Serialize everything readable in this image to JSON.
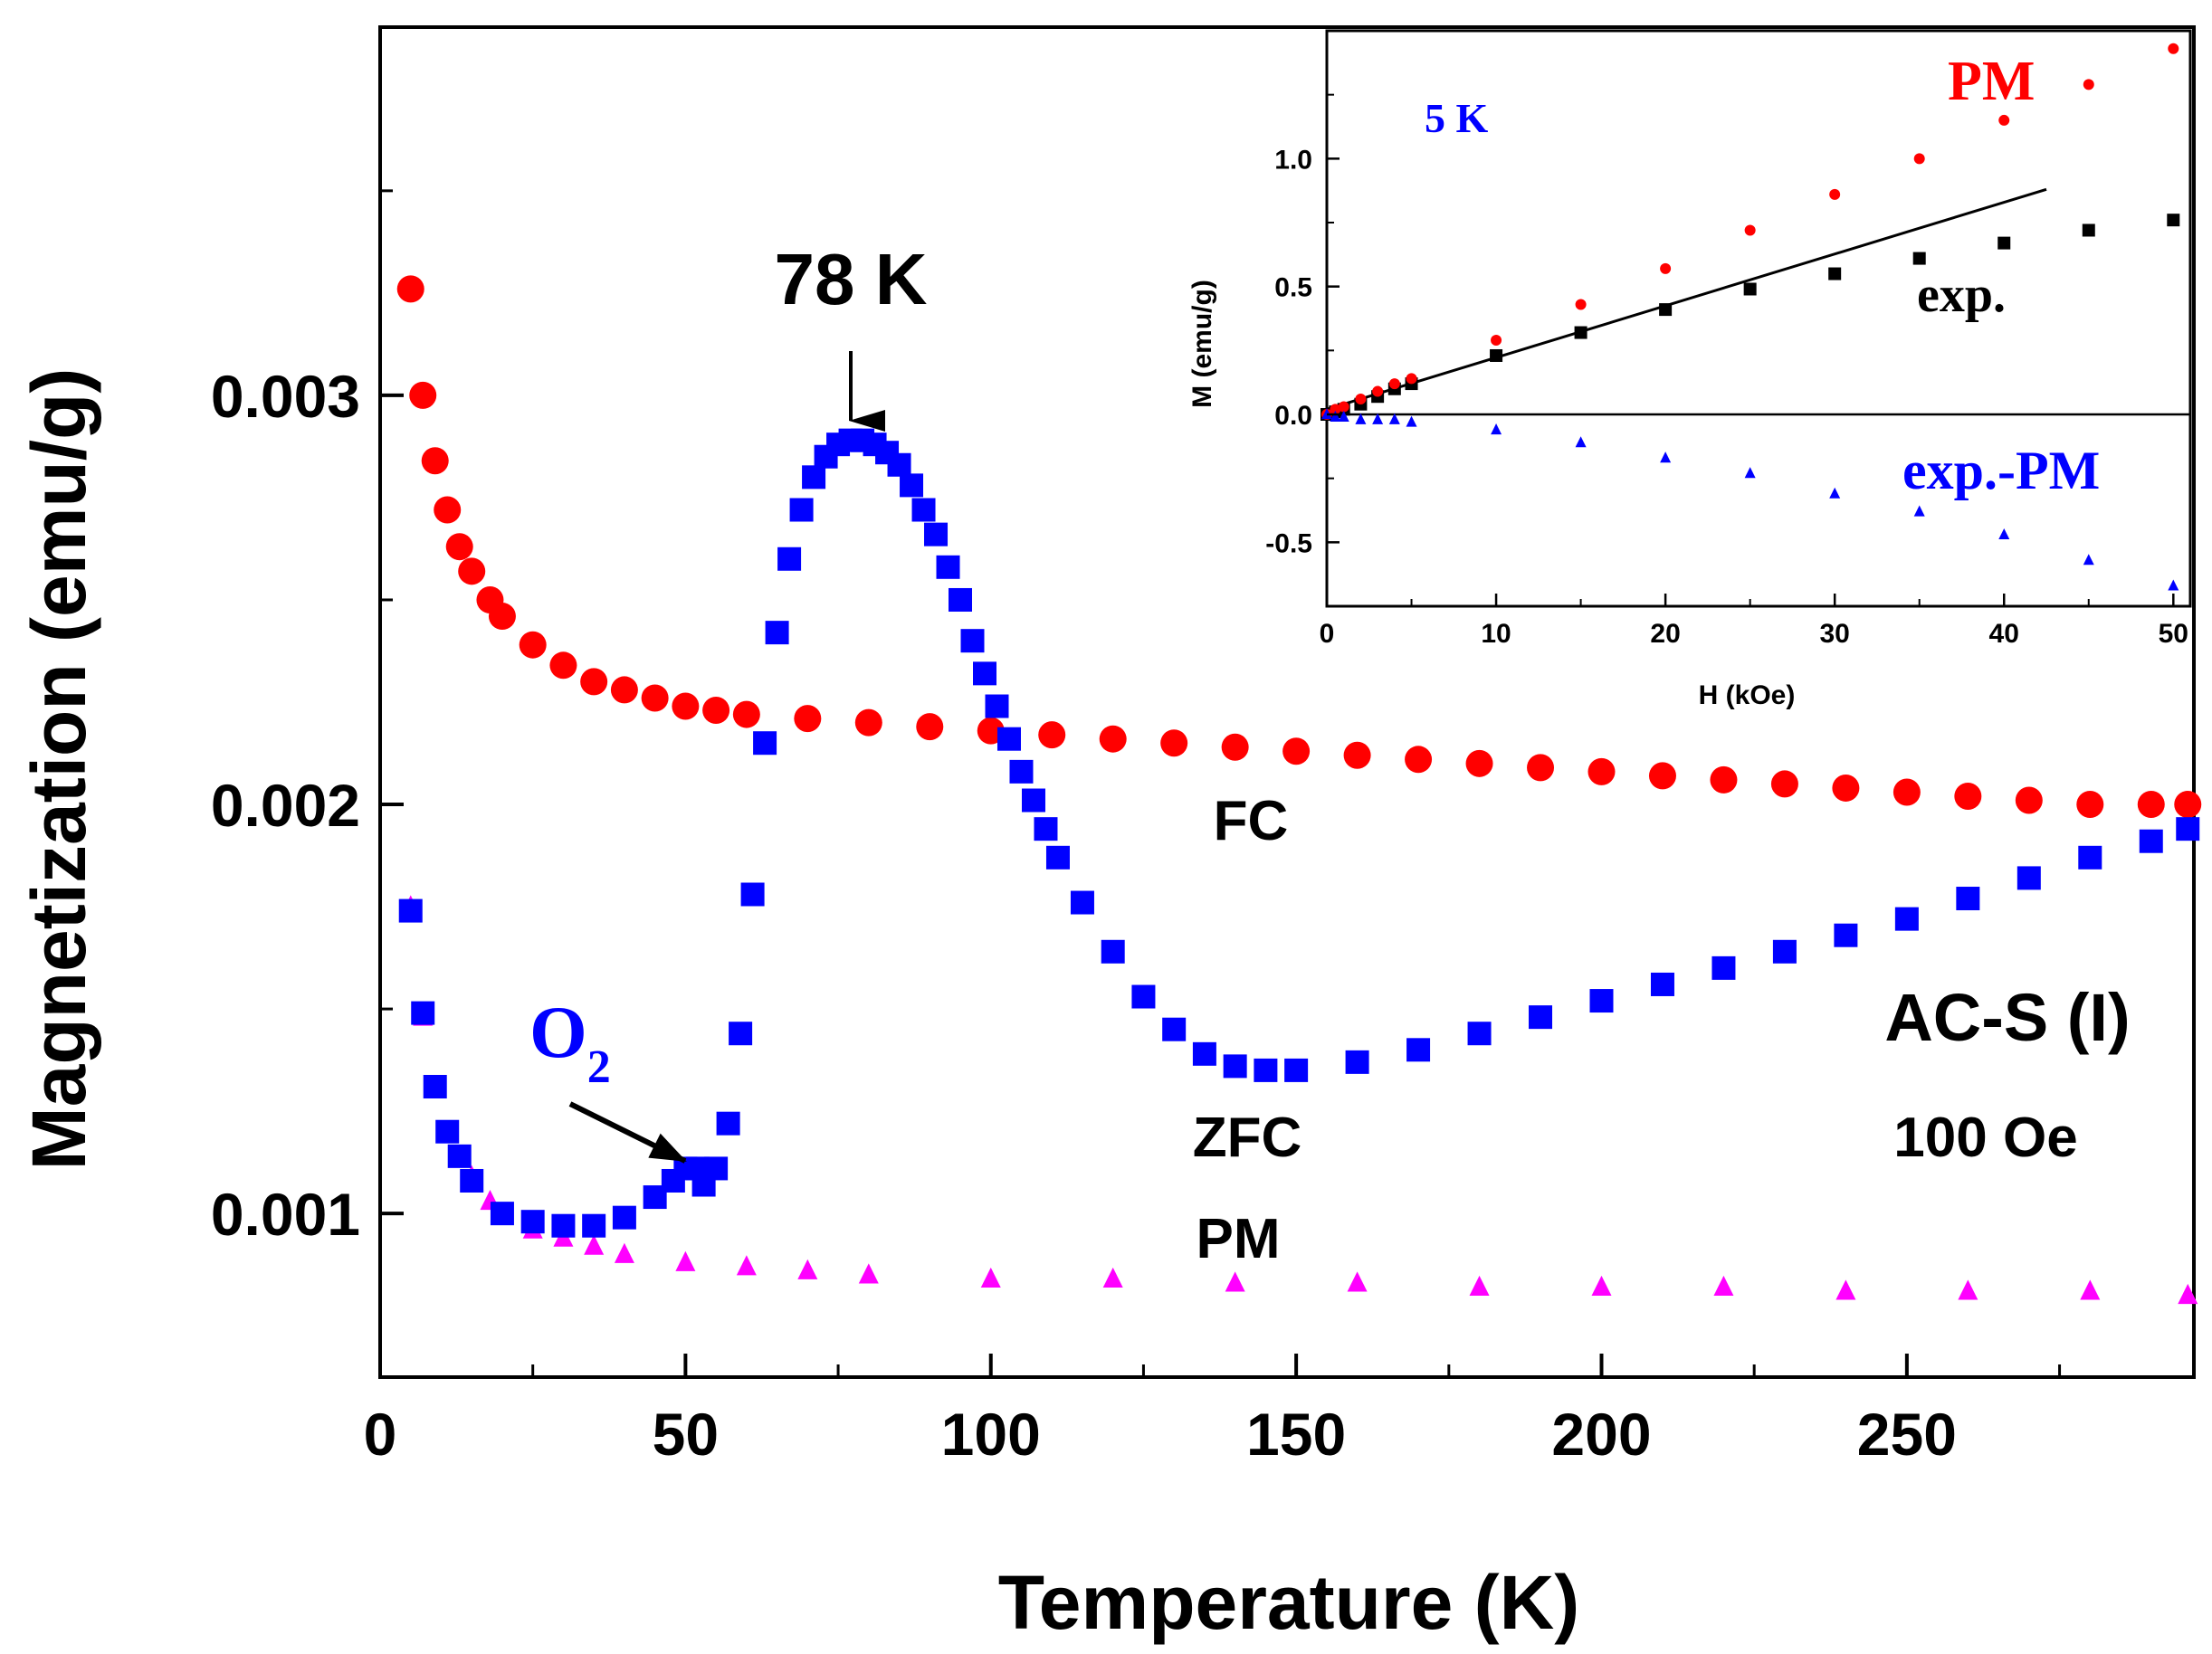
{
  "chart_data": [
    {
      "type": "scatter",
      "xlabel": "Temperature (K)",
      "ylabel": "Magnetization (emu/g)",
      "xlim": [
        0,
        297
      ],
      "ylim": [
        0.0006,
        0.0039
      ],
      "xticks": [
        0,
        50,
        100,
        150,
        200,
        250
      ],
      "xtick_labels": [
        "0",
        "50",
        "100",
        "150",
        "200",
        "250"
      ],
      "yticks": [
        0.001,
        0.002,
        0.003
      ],
      "ytick_labels": [
        "0.001",
        "0.002",
        "0.003"
      ],
      "grid": false,
      "colors": {
        "FC": "#ff0000",
        "ZFC": "#0000ff",
        "PM": "#ff00ff"
      },
      "series": [
        {
          "name": "FC",
          "marker": "circle",
          "x": [
            5,
            7,
            9,
            11,
            13,
            15,
            18,
            20,
            25,
            30,
            35,
            40,
            45,
            50,
            55,
            60,
            70,
            80,
            90,
            100,
            110,
            120,
            130,
            140,
            150,
            160,
            170,
            180,
            190,
            200,
            210,
            220,
            230,
            240,
            250,
            260,
            270,
            280,
            290,
            296
          ],
          "y": [
            0.00326,
            0.003,
            0.00284,
            0.00272,
            0.00263,
            0.00257,
            0.0025,
            0.00246,
            0.00239,
            0.00234,
            0.0023,
            0.00228,
            0.00226,
            0.00224,
            0.00223,
            0.00222,
            0.00221,
            0.0022,
            0.00219,
            0.00218,
            0.00217,
            0.00216,
            0.00215,
            0.00214,
            0.00213,
            0.00212,
            0.00211,
            0.0021,
            0.00209,
            0.00208,
            0.00207,
            0.00206,
            0.00205,
            0.00204,
            0.00203,
            0.00202,
            0.00201,
            0.002,
            0.002,
            0.002
          ]
        },
        {
          "name": "ZFC",
          "marker": "square",
          "x": [
            5,
            7,
            9,
            11,
            13,
            15,
            20,
            25,
            30,
            35,
            40,
            45,
            48,
            50,
            52,
            53,
            55,
            57,
            59,
            61,
            63,
            65,
            67,
            69,
            71,
            73,
            75,
            77,
            79,
            81,
            83,
            85,
            87,
            89,
            91,
            93,
            95,
            97,
            99,
            101,
            103,
            105,
            107,
            109,
            111,
            115,
            120,
            125,
            130,
            135,
            140,
            145,
            150,
            160,
            170,
            180,
            190,
            200,
            210,
            220,
            230,
            240,
            250,
            260,
            270,
            280,
            290,
            296
          ],
          "y": [
            0.00174,
            0.00149,
            0.00131,
            0.0012,
            0.00114,
            0.00108,
            0.001,
            0.00098,
            0.00097,
            0.00097,
            0.00099,
            0.00104,
            0.00108,
            0.00111,
            0.00111,
            0.00107,
            0.00111,
            0.00122,
            0.00144,
            0.00178,
            0.00215,
            0.00242,
            0.0026,
            0.00272,
            0.0028,
            0.00285,
            0.00288,
            0.00289,
            0.00289,
            0.00288,
            0.00286,
            0.00283,
            0.00278,
            0.00272,
            0.00266,
            0.00258,
            0.0025,
            0.0024,
            0.00232,
            0.00224,
            0.00216,
            0.00208,
            0.00201,
            0.00194,
            0.00187,
            0.00176,
            0.00164,
            0.00153,
            0.00145,
            0.00139,
            0.00136,
            0.00135,
            0.00135,
            0.00137,
            0.0014,
            0.00144,
            0.00148,
            0.00152,
            0.00156,
            0.0016,
            0.00164,
            0.00168,
            0.00172,
            0.00177,
            0.00182,
            0.00187,
            0.00191,
            0.00194
          ]
        },
        {
          "name": "PM",
          "marker": "triangle",
          "x": [
            5,
            7,
            9,
            11,
            13,
            15,
            18,
            20,
            25,
            30,
            35,
            40,
            50,
            60,
            70,
            80,
            100,
            120,
            140,
            160,
            180,
            200,
            220,
            240,
            260,
            280,
            296
          ],
          "y": [
            0.00175,
            0.00148,
            0.00131,
            0.0012,
            0.00114,
            0.00109,
            0.00103,
            0.001,
            0.00096,
            0.00094,
            0.00092,
            0.0009,
            0.00088,
            0.00087,
            0.00086,
            0.00085,
            0.00084,
            0.00084,
            0.00083,
            0.00083,
            0.00082,
            0.00082,
            0.00082,
            0.00081,
            0.00081,
            0.00081,
            0.0008
          ]
        }
      ],
      "annotations": [
        {
          "id": "peak",
          "text": "78 K",
          "x": 78,
          "y": 0.0029
        },
        {
          "id": "o2",
          "text": "O",
          "sub": "2",
          "x": 51,
          "y": 0.00115
        },
        {
          "id": "fc",
          "text": "FC"
        },
        {
          "id": "zfc",
          "text": "ZFC"
        },
        {
          "id": "pm",
          "text": "PM"
        },
        {
          "id": "sample",
          "text": "AC-S (I)"
        },
        {
          "id": "field",
          "text": "100 Oe"
        }
      ]
    },
    {
      "type": "scatter",
      "xlabel": "H (kOe)",
      "ylabel": "M (emu/g)",
      "xlim": [
        0,
        51
      ],
      "ylim": [
        -0.75,
        1.5
      ],
      "xticks": [
        0,
        10,
        20,
        30,
        40,
        50
      ],
      "xtick_labels": [
        "0",
        "10",
        "20",
        "30",
        "40",
        "50"
      ],
      "yticks": [
        -0.5,
        0.0,
        0.5,
        1.0
      ],
      "ytick_labels": [
        "-0.5",
        "0.0",
        "0.5",
        "1.0"
      ],
      "zero_line": true,
      "grid": false,
      "colors": {
        "exp": "#000000",
        "PM": "#ff0000",
        "diff": "#0000ff"
      },
      "series": [
        {
          "name": "exp.",
          "marker": "square",
          "x": [
            0,
            0.5,
            1,
            2,
            3,
            4,
            5,
            10,
            15,
            20,
            25,
            30,
            35,
            40,
            45,
            50
          ],
          "y": [
            0.0,
            0.01,
            0.02,
            0.04,
            0.07,
            0.1,
            0.12,
            0.23,
            0.32,
            0.41,
            0.49,
            0.55,
            0.61,
            0.67,
            0.72,
            0.76
          ]
        },
        {
          "name": "PM",
          "marker": "circle",
          "x": [
            0,
            0.5,
            1,
            2,
            3,
            4,
            5,
            10,
            15,
            20,
            25,
            30,
            35,
            40,
            45,
            50
          ],
          "y": [
            0.0,
            0.02,
            0.03,
            0.06,
            0.09,
            0.12,
            0.14,
            0.29,
            0.43,
            0.57,
            0.72,
            0.86,
            1.0,
            1.15,
            1.29,
            1.43
          ]
        },
        {
          "name": "exp.-PM",
          "marker": "triangle",
          "x": [
            0,
            0.5,
            1,
            2,
            3,
            4,
            5,
            10,
            15,
            20,
            25,
            30,
            35,
            40,
            45,
            50
          ],
          "y": [
            0.0,
            -0.01,
            -0.01,
            -0.02,
            -0.02,
            -0.02,
            -0.03,
            -0.06,
            -0.11,
            -0.17,
            -0.23,
            -0.31,
            -0.38,
            -0.47,
            -0.57,
            -0.67
          ]
        }
      ],
      "fit_line": {
        "x": [
          0,
          42.5
        ],
        "y": [
          0.02,
          0.88
        ]
      },
      "annotations": [
        {
          "id": "temp",
          "text": "5 K"
        },
        {
          "id": "pm",
          "text": "PM"
        },
        {
          "id": "exp",
          "text": "exp."
        },
        {
          "id": "diff",
          "text": "exp.-PM"
        }
      ]
    }
  ]
}
